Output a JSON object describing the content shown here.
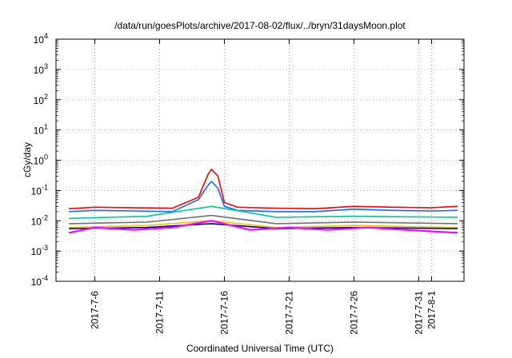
{
  "chart_data": {
    "type": "line",
    "title": "/data/run/goesPlots/archive/2017-08-02/flux/../bryn/31daysMoon.plot",
    "xlabel": "Coordinated Universal Time (UTC)",
    "ylabel": "cGy/day",
    "yscale": "log",
    "ylim_exp": [
      -4,
      4
    ],
    "y_ticks": [
      {
        "base": "10",
        "exp": "-4"
      },
      {
        "base": "10",
        "exp": "-3"
      },
      {
        "base": "10",
        "exp": "-2"
      },
      {
        "base": "10",
        "exp": "-1"
      },
      {
        "base": "10",
        "exp": "0"
      },
      {
        "base": "10",
        "exp": "1"
      },
      {
        "base": "10",
        "exp": "2"
      },
      {
        "base": "10",
        "exp": "3"
      },
      {
        "base": "10",
        "exp": "4"
      }
    ],
    "xlim": [
      "2017-07-03T00:00",
      "2017-08-03T12:00"
    ],
    "x_ticks": [
      {
        "label": "2017-7-6",
        "date": "2017-07-06"
      },
      {
        "label": "2017-7-11",
        "date": "2017-07-11"
      },
      {
        "label": "2017-7-16",
        "date": "2017-07-16"
      },
      {
        "label": "2017-7-21",
        "date": "2017-07-21"
      },
      {
        "label": "2017-7-26",
        "date": "2017-07-26"
      },
      {
        "label": "2017-7-31",
        "date": "2017-07-31"
      },
      {
        "label": "2017-8-1",
        "date": "2017-08-01"
      }
    ],
    "grid": true,
    "series": [
      {
        "color": "#ff0000",
        "x": [
          "2017-07-04",
          "2017-07-06",
          "2017-07-09",
          "2017-07-12",
          "2017-07-14",
          "2017-07-14T18:00",
          "2017-07-15",
          "2017-07-15T12:00",
          "2017-07-16",
          "2017-07-17",
          "2017-07-20",
          "2017-07-23",
          "2017-07-26",
          "2017-07-29",
          "2017-08-01",
          "2017-08-03"
        ],
        "y": [
          0.025,
          0.028,
          0.027,
          0.026,
          0.06,
          0.35,
          0.5,
          0.3,
          0.04,
          0.028,
          0.026,
          0.025,
          0.03,
          0.028,
          0.027,
          0.03
        ]
      },
      {
        "color": "#1e64ff",
        "x": [
          "2017-07-04",
          "2017-07-06",
          "2017-07-09",
          "2017-07-12",
          "2017-07-14",
          "2017-07-14T18:00",
          "2017-07-15",
          "2017-07-15T12:00",
          "2017-07-16",
          "2017-07-17",
          "2017-07-20",
          "2017-07-23",
          "2017-07-26",
          "2017-07-29",
          "2017-08-01",
          "2017-08-03"
        ],
        "y": [
          0.02,
          0.022,
          0.021,
          0.02,
          0.05,
          0.15,
          0.2,
          0.12,
          0.03,
          0.022,
          0.02,
          0.02,
          0.024,
          0.022,
          0.021,
          0.022
        ]
      },
      {
        "color": "#00c8a0",
        "x": [
          "2017-07-04",
          "2017-07-10",
          "2017-07-15",
          "2017-07-20",
          "2017-07-26",
          "2017-08-03"
        ],
        "y": [
          0.012,
          0.014,
          0.03,
          0.013,
          0.014,
          0.013
        ]
      },
      {
        "color": "#707070",
        "x": [
          "2017-07-04",
          "2017-07-10",
          "2017-07-15",
          "2017-07-20",
          "2017-07-26",
          "2017-08-03"
        ],
        "y": [
          0.008,
          0.009,
          0.015,
          0.008,
          0.009,
          0.008
        ]
      },
      {
        "color": "#e6c800",
        "x": [
          "2017-07-04",
          "2017-07-10",
          "2017-07-15",
          "2017-07-20",
          "2017-07-26",
          "2017-08-03"
        ],
        "y": [
          0.006,
          0.007,
          0.01,
          0.006,
          0.007,
          0.006
        ]
      },
      {
        "color": "#000080",
        "x": [
          "2017-07-04",
          "2017-07-10",
          "2017-07-15",
          "2017-07-20",
          "2017-07-26",
          "2017-08-03"
        ],
        "y": [
          0.0055,
          0.006,
          0.008,
          0.0055,
          0.006,
          0.0055
        ]
      },
      {
        "color": "#ff00ff",
        "x": [
          "2017-07-04",
          "2017-07-06",
          "2017-07-09",
          "2017-07-12",
          "2017-07-15",
          "2017-07-18",
          "2017-07-21",
          "2017-07-24",
          "2017-07-27",
          "2017-07-30",
          "2017-08-03"
        ],
        "y": [
          0.004,
          0.006,
          0.005,
          0.006,
          0.01,
          0.005,
          0.006,
          0.005,
          0.006,
          0.005,
          0.004
        ]
      }
    ]
  }
}
